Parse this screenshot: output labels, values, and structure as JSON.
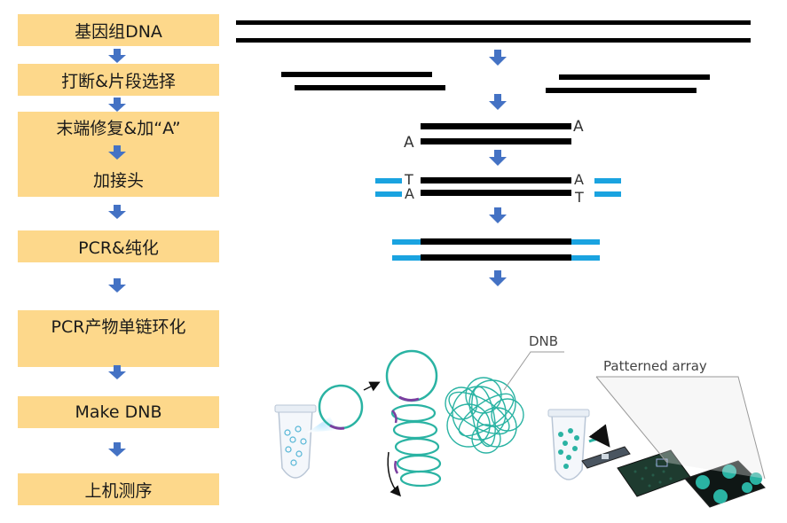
{
  "steps": {
    "genomic_dna": "基因组DNA",
    "fragment_select": "打断&片段选择",
    "end_repair": "末端修复&加“A”",
    "add_adapter": "加接头",
    "pcr_purify": "PCR&纯化",
    "circularize": "PCR产物单链环化",
    "make_dnb": "Make DNB",
    "sequencing": "上机测序"
  },
  "labels": {
    "dnb": "DNB",
    "patterned_array": "Patterned array",
    "base_a": "A",
    "base_t": "T"
  },
  "colors": {
    "step_box": "#fdd88b",
    "arrow": "#4472c4",
    "adapter": "#1aa3e0",
    "strand": "#000000",
    "dnb_teal": "#2ab3a3"
  }
}
